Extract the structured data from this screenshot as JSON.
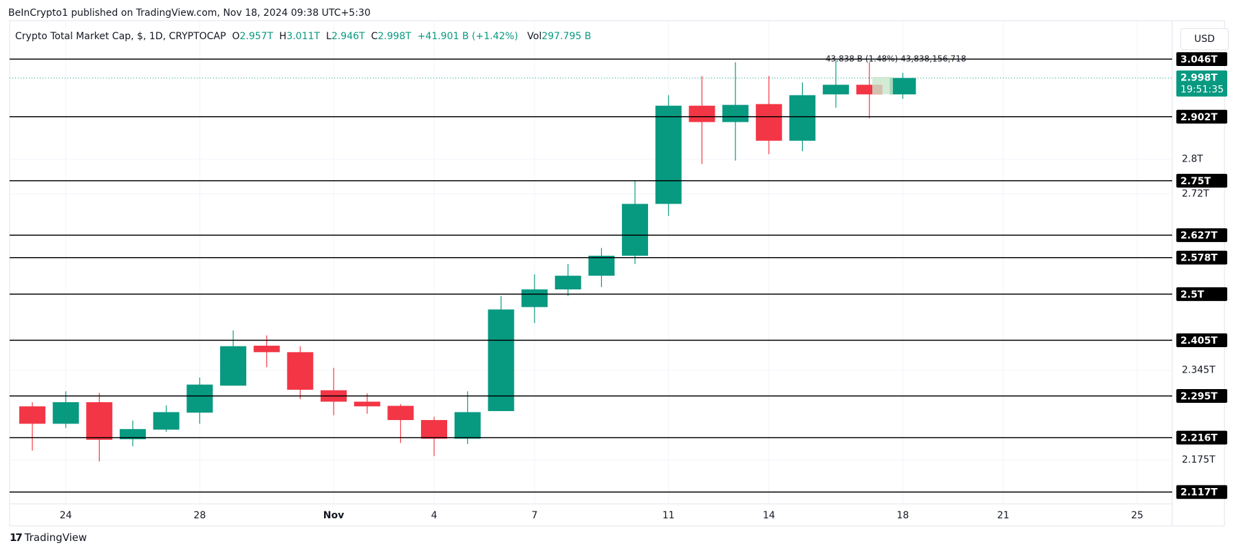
{
  "header": {
    "published": "BeInCrypto1 published on TradingView.com, Nov 18, 2024 09:38 UTC+5:30",
    "symbol": "Crypto Total Market Cap, $, 1D, CRYPTOCAP",
    "o_label": "O",
    "o": "2.957T",
    "h_label": "H",
    "h": "3.011T",
    "l_label": "L",
    "l": "2.946T",
    "c_label": "C",
    "c": "2.998T",
    "change": "+41.901 B (+1.42%)",
    "vol_label": "Vol",
    "vol": "297.795 B",
    "currency": "USD",
    "brand": "TradingView"
  },
  "chart_data": {
    "type": "candlestick",
    "categories": [
      null,
      "24",
      null,
      null,
      null,
      "28",
      null,
      null,
      null,
      "Nov",
      null,
      null,
      "4",
      null,
      null,
      "7",
      null,
      null,
      null,
      "11",
      null,
      null,
      "14",
      null,
      null,
      null,
      "18",
      null,
      null,
      "21",
      null,
      null,
      null,
      "25",
      null
    ],
    "open": [
      2.275,
      2.242,
      2.283,
      2.213,
      2.231,
      2.263,
      2.315,
      2.394,
      2.381,
      2.306,
      2.284,
      2.276,
      2.249,
      2.214,
      2.266,
      2.473,
      2.51,
      2.539,
      2.582,
      2.697,
      2.929,
      2.889,
      2.933,
      2.844,
      2.957,
      2.981,
      2.957,
      null,
      null,
      null,
      null,
      null,
      null,
      null,
      null
    ],
    "high": [
      2.283,
      2.304,
      2.301,
      2.248,
      2.277,
      2.331,
      2.425,
      2.415,
      2.393,
      2.35,
      2.3,
      2.279,
      2.255,
      2.304,
      2.496,
      2.542,
      2.564,
      2.599,
      2.75,
      2.955,
      3.003,
      3.038,
      3.003,
      2.987,
      3.042,
      3.038,
      3.011,
      null,
      null,
      null,
      null,
      null,
      null,
      null,
      null
    ],
    "low": [
      2.192,
      2.234,
      2.172,
      2.2,
      2.227,
      2.242,
      2.315,
      2.351,
      2.289,
      2.258,
      2.261,
      2.206,
      2.182,
      2.204,
      2.266,
      2.44,
      2.496,
      2.515,
      2.564,
      2.67,
      2.789,
      2.797,
      2.812,
      2.819,
      2.924,
      2.898,
      2.946,
      null,
      null,
      null,
      null,
      null,
      null,
      null,
      null
    ],
    "close": [
      2.242,
      2.283,
      2.212,
      2.232,
      2.264,
      2.317,
      2.393,
      2.381,
      2.307,
      2.284,
      2.275,
      2.249,
      2.214,
      2.264,
      2.468,
      2.51,
      2.539,
      2.582,
      2.697,
      2.929,
      2.889,
      2.931,
      2.844,
      2.955,
      2.981,
      2.957,
      2.998,
      null,
      null,
      null,
      null,
      null,
      null,
      null,
      null
    ],
    "up_color": "#089981",
    "down_color": "#f23645",
    "ylim": [
      2.096,
      3.137
    ],
    "log_scale": true,
    "grid": true,
    "yticks": [
      {
        "value": 2.8,
        "label": "2.8T"
      },
      {
        "value": 2.72,
        "label": "2.72T"
      },
      {
        "value": 2.345,
        "label": "2.345T"
      },
      {
        "value": 2.175,
        "label": "2.175T"
      }
    ],
    "levels": [
      {
        "value": 3.046,
        "label": "3.046T"
      },
      {
        "value": 2.902,
        "label": "2.902T"
      },
      {
        "value": 2.75,
        "label": "2.75T"
      },
      {
        "value": 2.627,
        "label": "2.627T"
      },
      {
        "value": 2.578,
        "label": "2.578T"
      },
      {
        "value": 2.5,
        "label": "2.5T"
      },
      {
        "value": 2.405,
        "label": "2.405T"
      },
      {
        "value": 2.295,
        "label": "2.295T"
      },
      {
        "value": 2.216,
        "label": "2.216T"
      },
      {
        "value": 2.117,
        "label": "2.117T"
      }
    ],
    "level_color": "#000000",
    "last_price": {
      "value": 2.998,
      "label": "2.998T"
    },
    "countdown": "19:51:35",
    "measure": "43.838 B (1.48%) 43,838,156,718"
  }
}
